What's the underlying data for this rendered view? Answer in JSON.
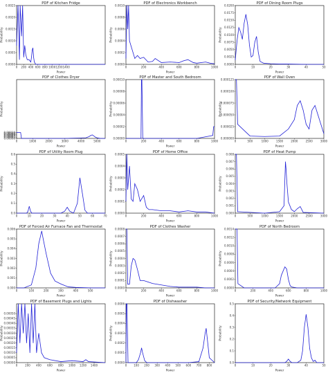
{
  "figure": {
    "layout": "5 rows x 3 columns grid of probability density plots",
    "line_color": "#1f1fd6",
    "background": "#ffffff"
  },
  "chart_data": [
    {
      "type": "line",
      "title": "PDF of Kitchen Fridge",
      "xlabel": "Power",
      "ylabel": "Probability",
      "xlim": [
        0,
        2500
      ],
      "ylim": [
        0,
        0.0025
      ],
      "xticks": [
        "0",
        "200",
        "400",
        "600",
        "800",
        "1000",
        "1200",
        "1400"
      ],
      "yticks": [
        "0.0000",
        "0.0005",
        "0.0010",
        "0.0015",
        "0.0020",
        "0.0025"
      ],
      "series": [
        {
          "x": [
            0,
            40,
            80,
            100,
            140,
            170,
            200,
            230,
            260,
            300,
            350,
            400,
            420,
            440,
            460,
            480,
            500,
            540,
            700,
            1000,
            1400,
            2500
          ],
          "y": [
            0.0008,
            0.0025,
            0.0002,
            0.0025,
            0.0012,
            0.0025,
            0.0003,
            0.0008,
            0.0004,
            0.0002,
            0.0002,
            0.0001,
            0.0003,
            0.0006,
            0.0007,
            0.0003,
            0.0001,
            0.0,
            0.0,
            0.0,
            0.0,
            0.0
          ]
        }
      ]
    },
    {
      "type": "line",
      "title": "PDF of Electronics Workbench",
      "xlabel": "Power",
      "ylabel": "Probability",
      "xlim": [
        0,
        1000
      ],
      "ylim": [
        0,
        0.001
      ],
      "xticks": [
        "0",
        "200",
        "400",
        "600",
        "800",
        "1000"
      ],
      "yticks": [
        "0.0000",
        "0.0002",
        "0.0004",
        "0.0006",
        "0.0008",
        "0.0010"
      ],
      "series": [
        {
          "x": [
            0,
            10,
            20,
            30,
            40,
            60,
            80,
            100,
            130,
            160,
            200,
            250,
            300,
            330,
            400,
            500,
            600,
            650,
            700,
            760,
            800,
            900,
            950,
            1000
          ],
          "y": [
            0.0001,
            0.001,
            0.0006,
            0.001,
            0.0004,
            0.0003,
            0.0002,
            0.0001,
            0.00015,
            0.0001,
            0.00012,
            4e-05,
            5e-05,
            0.0001,
            3e-05,
            4e-05,
            3e-05,
            6e-05,
            8e-05,
            3e-05,
            2e-05,
            4e-05,
            2e-05,
            1e-05
          ]
        }
      ]
    },
    {
      "type": "line",
      "title": "PDF of Dining Room Plugs",
      "xlabel": "Power",
      "ylabel": "Probability",
      "xlim": [
        0,
        50
      ],
      "ylim": [
        0,
        0.02
      ],
      "xticks": [
        "0",
        "10",
        "20",
        "30",
        "40",
        "50"
      ],
      "yticks": [
        "0.0000",
        "0.0025",
        "0.0050",
        "0.0075",
        "0.0100",
        "0.0125",
        "0.0150",
        "0.0175",
        "0.0200"
      ],
      "series": [
        {
          "x": [
            0,
            1,
            2,
            3,
            4,
            5,
            6,
            7,
            8,
            9,
            10,
            11,
            12,
            13,
            14,
            16,
            20,
            25,
            30,
            40,
            50
          ],
          "y": [
            0.0015,
            0.008,
            0.0125,
            0.011,
            0.0085,
            0.014,
            0.017,
            0.0135,
            0.0065,
            0.0025,
            0.003,
            0.0075,
            0.0095,
            0.004,
            0.001,
            0.0004,
            0.0002,
            0.0001,
            0.0001,
            0.0,
            0.0
          ]
        }
      ]
    },
    {
      "type": "line",
      "title": "PDF of Clothes Dryer",
      "xlabel": "Power",
      "ylabel": "Probability",
      "xlim": [
        0,
        5500
      ],
      "ylim": [
        0,
        0.001
      ],
      "xticks": [
        "0",
        "1000",
        "2000",
        "3000",
        "4000",
        "5000"
      ],
      "yticks": [
        "0.00000",
        "0.00002",
        "0.00004",
        "0.00006",
        "0.00008",
        "0.00010"
      ],
      "series": [
        {
          "x": [
            0,
            50,
            100,
            200,
            250,
            300,
            1000,
            2000,
            3000,
            4300,
            4500,
            4600,
            4700,
            4800,
            4850,
            4900,
            5000,
            5100,
            5200,
            5500
          ],
          "y": [
            0.0001,
            0.0001,
            0.0001,
            0.0001,
            0.0001,
            0.0,
            0.0,
            0.0,
            0.0,
            1e-05,
            3e-05,
            5e-05,
            6e-05,
            4e-05,
            3e-05,
            2e-05,
            1e-05,
            5e-06,
            0.0,
            0.0
          ]
        }
      ]
    },
    {
      "type": "line",
      "title": "PDF of Master and South Bedroom",
      "xlabel": "Power",
      "ylabel": "Probability",
      "xlim": [
        0,
        1000
      ],
      "ylim": [
        0,
        0.0001
      ],
      "xticks": [
        "0",
        "200",
        "400",
        "600",
        "800",
        "1000"
      ],
      "yticks": [
        "0.00000",
        "0.00002",
        "0.00004",
        "0.00006",
        "0.00008",
        "0.00010"
      ],
      "series": [
        {
          "x": [
            0,
            150,
            170,
            175,
            180,
            190,
            400,
            800,
            980,
            990,
            1000
          ],
          "y": [
            0.0,
            0.0,
            0.0,
            0.0001,
            0.0001,
            0.0,
            0.0,
            0.0,
            5e-06,
            2e-05,
            2e-05
          ]
        }
      ]
    },
    {
      "type": "line",
      "title": "PDF of Wall Oven",
      "xlabel": "Power",
      "ylabel": "Probability",
      "xlim": [
        0,
        3000
      ],
      "ylim": [
        0,
        0.000125
      ],
      "xticks": [
        "0",
        "500",
        "1000",
        "1500",
        "2000",
        "2500",
        "3000"
      ],
      "yticks": [
        "0.000000",
        "0.000025",
        "0.000050",
        "0.000075",
        "0.000100",
        "0.000125"
      ],
      "series": [
        {
          "x": [
            0,
            40,
            80,
            500,
            1000,
            1500,
            1800,
            2000,
            2100,
            2200,
            2300,
            2400,
            2500,
            2600,
            2700,
            2800,
            2900,
            3000
          ],
          "y": [
            0.000125,
            0.000125,
            3e-05,
            5e-06,
            4e-06,
            5e-06,
            2e-05,
            4e-05,
            7e-05,
            8e-05,
            6e-05,
            3e-05,
            2e-05,
            6e-05,
            7e-05,
            5e-05,
            3e-05,
            1e-05
          ]
        }
      ]
    },
    {
      "type": "line",
      "title": "PDF of Utility Room Plug",
      "xlabel": "Power",
      "ylabel": "Probability",
      "xlim": [
        0,
        70
      ],
      "ylim": [
        0,
        0.6
      ],
      "xticks": [
        "0",
        "10",
        "20",
        "30",
        "40",
        "50",
        "60",
        "70"
      ],
      "yticks": [
        "0.0",
        "0.1",
        "0.2",
        "0.3",
        "0.4",
        "0.5",
        "0.6"
      ],
      "series": [
        {
          "x": [
            0,
            8,
            9,
            10,
            11,
            12,
            20,
            35,
            38,
            40,
            42,
            45,
            48,
            50,
            52,
            54,
            56,
            60,
            70
          ],
          "y": [
            0.0,
            0.0,
            0.02,
            0.07,
            0.02,
            0.0,
            0.0,
            0.0,
            0.02,
            0.06,
            0.02,
            0.0,
            0.1,
            0.36,
            0.2,
            0.03,
            0.0,
            0.0,
            0.0
          ]
        }
      ]
    },
    {
      "type": "line",
      "title": "PDF of Home Office",
      "xlabel": "Power",
      "ylabel": "Probability",
      "xlim": [
        0,
        1000
      ],
      "ylim": [
        0,
        0.0005
      ],
      "xticks": [
        "0",
        "200",
        "400",
        "600",
        "800",
        "1000"
      ],
      "yticks": [
        "0.0000",
        "0.0001",
        "0.0002",
        "0.0003",
        "0.0004",
        "0.0005"
      ],
      "series": [
        {
          "x": [
            0,
            10,
            20,
            40,
            60,
            80,
            100,
            130,
            160,
            200,
            230,
            260,
            300,
            400,
            500,
            600,
            700,
            800,
            900,
            1000
          ],
          "y": [
            0.0001,
            0.0005,
            0.0002,
            0.0004,
            0.00012,
            0.0001,
            0.00025,
            0.0002,
            0.0001,
            0.00015,
            5e-05,
            3e-05,
            3e-05,
            2e-05,
            2e-05,
            1e-05,
            2e-05,
            1e-05,
            1e-05,
            0.0
          ]
        }
      ]
    },
    {
      "type": "line",
      "title": "PDF of Heat Pump",
      "xlabel": "Power",
      "ylabel": "Probability",
      "xlim": [
        0,
        3000
      ],
      "ylim": [
        0,
        0.008
      ],
      "xticks": [
        "0",
        "500",
        "1000",
        "1500",
        "2000",
        "2500",
        "3000"
      ],
      "yticks": [
        "0.000",
        "0.001",
        "0.002",
        "0.003",
        "0.004",
        "0.005",
        "0.006",
        "0.007",
        "0.008"
      ],
      "series": [
        {
          "x": [
            0,
            40,
            80,
            1000,
            1500,
            1650,
            1700,
            1720,
            1750,
            1800,
            1900,
            2000,
            2100,
            2200,
            2300,
            3000
          ],
          "y": [
            0.008,
            0.008,
            0.0002,
            0.0,
            0.0002,
            0.001,
            0.007,
            0.006,
            0.004,
            0.0015,
            0.0005,
            0.0002,
            0.0006,
            0.0009,
            0.0001,
            0.0
          ]
        }
      ]
    },
    {
      "type": "line",
      "title": "PDF of Forced Air Furnace Fan and Thermostat",
      "xlabel": "Power",
      "ylabel": "Probability",
      "xlim": [
        0,
        600
      ],
      "ylim": [
        0,
        0.006
      ],
      "xticks": [
        "0",
        "100",
        "200",
        "300",
        "400",
        "500"
      ],
      "yticks": [
        "0.000",
        "0.001",
        "0.002",
        "0.003",
        "0.004",
        "0.005",
        "0.006"
      ],
      "series": [
        {
          "x": [
            0,
            50,
            100,
            130,
            150,
            170,
            180,
            200,
            230,
            260,
            300,
            350,
            400,
            500,
            600
          ],
          "y": [
            0.0,
            0.0,
            0.0003,
            0.002,
            0.0045,
            0.0058,
            0.005,
            0.0035,
            0.0015,
            0.0007,
            0.0004,
            0.0001,
            5e-05,
            0.0,
            0.0
          ]
        }
      ]
    },
    {
      "type": "line",
      "title": "PDF of Clothes Washer",
      "xlabel": "Power",
      "ylabel": "Probability",
      "xlim": [
        0,
        1000
      ],
      "ylim": [
        0,
        0.0008
      ],
      "xticks": [
        "0",
        "200",
        "400",
        "600",
        "800",
        "1000"
      ],
      "yticks": [
        "0.0000",
        "0.0001",
        "0.0002",
        "0.0003",
        "0.0004",
        "0.0005",
        "0.0006",
        "0.0007",
        "0.0008"
      ],
      "series": [
        {
          "x": [
            0,
            10,
            20,
            40,
            60,
            80,
            100,
            130,
            160,
            200,
            250,
            300,
            400,
            500,
            600,
            700,
            800,
            900,
            1000
          ],
          "y": [
            0.0008,
            0.0008,
            5e-05,
            5e-05,
            0.0003,
            0.0004,
            0.00038,
            0.00025,
            0.0001,
            0.0001,
            8e-05,
            6e-05,
            4e-05,
            2e-05,
            1e-05,
            1e-05,
            1e-05,
            0.0,
            0.0
          ]
        }
      ]
    },
    {
      "type": "line",
      "title": "PDF of North Bedroom",
      "xlabel": "Power",
      "ylabel": "Probability",
      "xlim": [
        0,
        1000
      ],
      "ylim": [
        0,
        0.0014
      ],
      "xticks": [
        "0",
        "200",
        "400",
        "600",
        "800",
        "1000"
      ],
      "yticks": [
        "0.0000",
        "0.0002",
        "0.0004",
        "0.0006",
        "0.0008",
        "0.0010",
        "0.0012",
        "0.0014"
      ],
      "series": [
        {
          "x": [
            0,
            10,
            20,
            30,
            100,
            300,
            450,
            500,
            520,
            540,
            560,
            580,
            600,
            620,
            640,
            700,
            1000
          ],
          "y": [
            0.0014,
            0.0014,
            0.0014,
            0.0001,
            0.0,
            0.0,
            0.0,
            0.0001,
            0.0003,
            0.0004,
            0.0005,
            0.00045,
            0.0002,
            5e-05,
            2e-05,
            0.0,
            0.0
          ]
        }
      ]
    },
    {
      "type": "line",
      "title": "PDF of Basement Plugs and Lights",
      "xlabel": "Power",
      "ylabel": "Probability",
      "xlim": [
        0,
        1600
      ],
      "ylim": [
        0,
        0.0006
      ],
      "xticks": [
        "0",
        "200",
        "400",
        "600",
        "800",
        "1000",
        "1200",
        "1400"
      ],
      "yticks": [
        "0.00000",
        "0.00005",
        "0.00010",
        "0.00015",
        "0.00020",
        "0.00025",
        "0.00030",
        "0.00035",
        "0.00040",
        "0.00045",
        "0.00050"
      ],
      "series": [
        {
          "x": [
            0,
            30,
            60,
            90,
            120,
            150,
            180,
            210,
            240,
            270,
            300,
            330,
            360,
            400,
            450,
            500,
            600,
            800,
            1000,
            1200,
            1250,
            1300,
            1600
          ],
          "y": [
            0.0001,
            0.0006,
            0.0002,
            0.0006,
            0.0003,
            0.0006,
            0.0002,
            0.0005,
            0.0001,
            0.0006,
            0.0002,
            0.0006,
            0.0001,
            0.0003,
            0.0001,
            5e-05,
            3e-05,
            1e-05,
            2e-05,
            1e-05,
            3e-05,
            1e-05,
            0.0
          ]
        }
      ]
    },
    {
      "type": "line",
      "title": "PDF of Dishwasher",
      "xlabel": "Power",
      "ylabel": "Probability",
      "xlim": [
        0,
        850
      ],
      "ylim": [
        0,
        0.0006
      ],
      "xticks": [
        "0",
        "100",
        "200",
        "300",
        "400",
        "500",
        "600",
        "700",
        "800"
      ],
      "yticks": [
        "0.0000",
        "0.0001",
        "0.0002",
        "0.0003",
        "0.0004",
        "0.0005",
        "0.0006"
      ],
      "series": [
        {
          "x": [
            0,
            5,
            10,
            20,
            100,
            120,
            140,
            150,
            160,
            180,
            200,
            400,
            600,
            700,
            740,
            760,
            770,
            780,
            800,
            850
          ],
          "y": [
            0.0,
            0.0006,
            0.0006,
            0.0,
            0.0,
            3e-05,
            0.0001,
            0.00015,
            0.0001,
            2e-05,
            0.0,
            0.0,
            0.0,
            1e-05,
            0.00015,
            0.0003,
            0.00035,
            0.00025,
            5e-05,
            0.0
          ]
        }
      ]
    },
    {
      "type": "line",
      "title": "PDF of Security/Network Equipment",
      "xlabel": "Power",
      "ylabel": "Probability",
      "xlim": [
        0,
        50
      ],
      "ylim": [
        0,
        0.5
      ],
      "xticks": [
        "0",
        "10",
        "20",
        "30",
        "40",
        "50"
      ],
      "yticks": [
        "0.0",
        "0.1",
        "0.2",
        "0.3",
        "0.4",
        "0.5"
      ],
      "series": [
        {
          "x": [
            0,
            10,
            20,
            28,
            29,
            30,
            31,
            32,
            35,
            37,
            38,
            39,
            40,
            41,
            42,
            43,
            44,
            45,
            46,
            50
          ],
          "y": [
            0.0,
            0.0,
            0.0,
            0.0,
            0.01,
            0.03,
            0.01,
            0.0,
            0.0,
            0.02,
            0.1,
            0.3,
            0.41,
            0.3,
            0.12,
            0.04,
            0.01,
            0.02,
            0.0,
            0.0
          ]
        }
      ]
    }
  ]
}
